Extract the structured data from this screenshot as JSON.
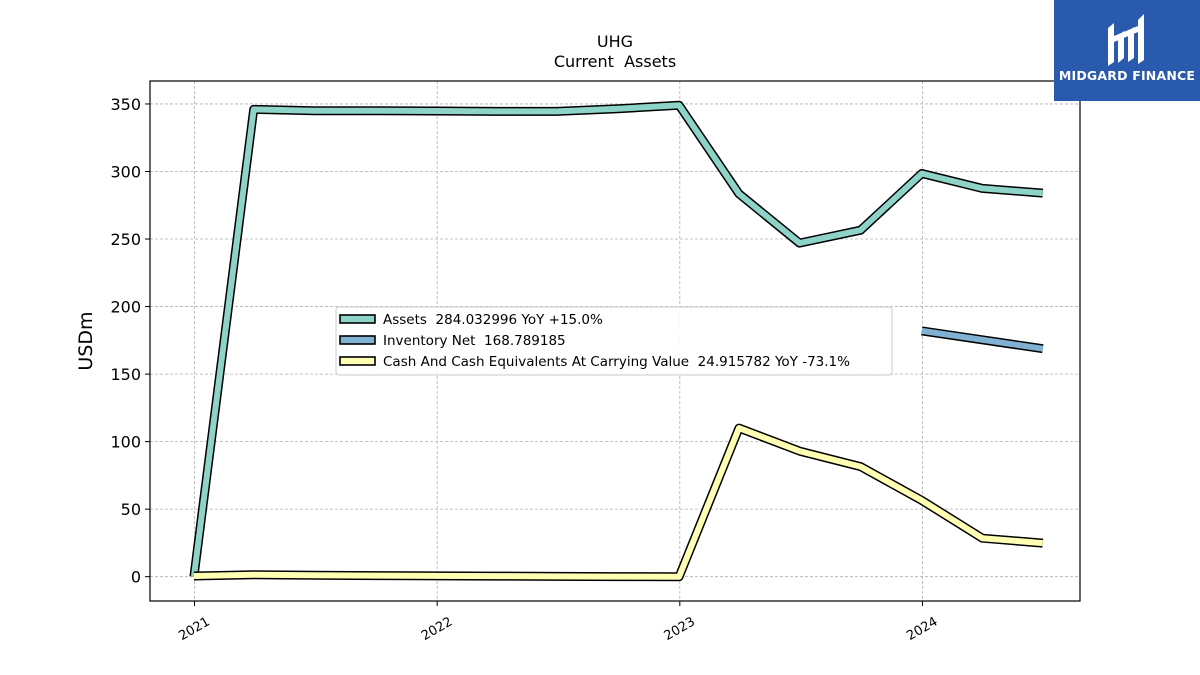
{
  "chart_data": {
    "type": "line",
    "title": "UHG",
    "subtitle": "Current  Assets",
    "ylabel": "USDm",
    "xlabel": "",
    "ylim": [
      -18,
      367
    ],
    "xlim": [
      "2020-10-26",
      "2024-08-25"
    ],
    "y_ticks": [
      0,
      50,
      100,
      150,
      200,
      250,
      300,
      350
    ],
    "x_ticks": [
      {
        "date": "2021-01-01",
        "label": "2021"
      },
      {
        "date": "2022-01-01",
        "label": "2022"
      },
      {
        "date": "2023-01-01",
        "label": "2023"
      },
      {
        "date": "2024-01-01",
        "label": "2024"
      }
    ],
    "grid": true,
    "legend_position": "center",
    "series": [
      {
        "name": "Assets",
        "legend": "Assets  284.032996 YoY +15.0%",
        "color": "#8dd3c7",
        "points": [
          [
            "2020-12-31",
            0
          ],
          [
            "2021-03-31",
            346
          ],
          [
            "2021-06-30",
            345
          ],
          [
            "2021-09-30",
            345
          ],
          [
            "2021-12-31",
            344.8
          ],
          [
            "2022-03-31",
            344.5
          ],
          [
            "2022-06-30",
            344.5
          ],
          [
            "2022-09-30",
            346.5
          ],
          [
            "2022-12-31",
            349
          ],
          [
            "2023-03-31",
            283.5
          ],
          [
            "2023-06-30",
            247
          ],
          [
            "2023-09-30",
            256.5
          ],
          [
            "2023-12-31",
            298.5
          ],
          [
            "2024-03-31",
            287.5
          ],
          [
            "2024-06-30",
            284
          ]
        ]
      },
      {
        "name": "Inventory Net",
        "legend": "Inventory Net  168.789185",
        "color": "#80b1d3",
        "points": [
          [
            "2023-12-31",
            182
          ],
          [
            "2024-06-30",
            168.8
          ]
        ]
      },
      {
        "name": "Cash And Cash Equivalents At Carrying Value",
        "legend": "Cash And Cash Equivalents At Carrying Value  24.915782 YoY -73.1%",
        "color": "#ffffb3",
        "points": [
          [
            "2020-12-31",
            0.5
          ],
          [
            "2021-03-31",
            1.5
          ],
          [
            "2021-06-30",
            1
          ],
          [
            "2021-09-30",
            0.8
          ],
          [
            "2021-12-31",
            0.6
          ],
          [
            "2022-03-31",
            0.4
          ],
          [
            "2022-06-30",
            0.2
          ],
          [
            "2022-09-30",
            0.1
          ],
          [
            "2022-12-31",
            0
          ],
          [
            "2023-03-31",
            110
          ],
          [
            "2023-06-30",
            93
          ],
          [
            "2023-09-30",
            81.5
          ],
          [
            "2023-12-31",
            56.5
          ],
          [
            "2024-03-31",
            28.5
          ],
          [
            "2024-06-30",
            24.9
          ]
        ]
      }
    ]
  },
  "logo": {
    "text": "MIDGARD FINANCE",
    "background": "#2a5aad"
  }
}
